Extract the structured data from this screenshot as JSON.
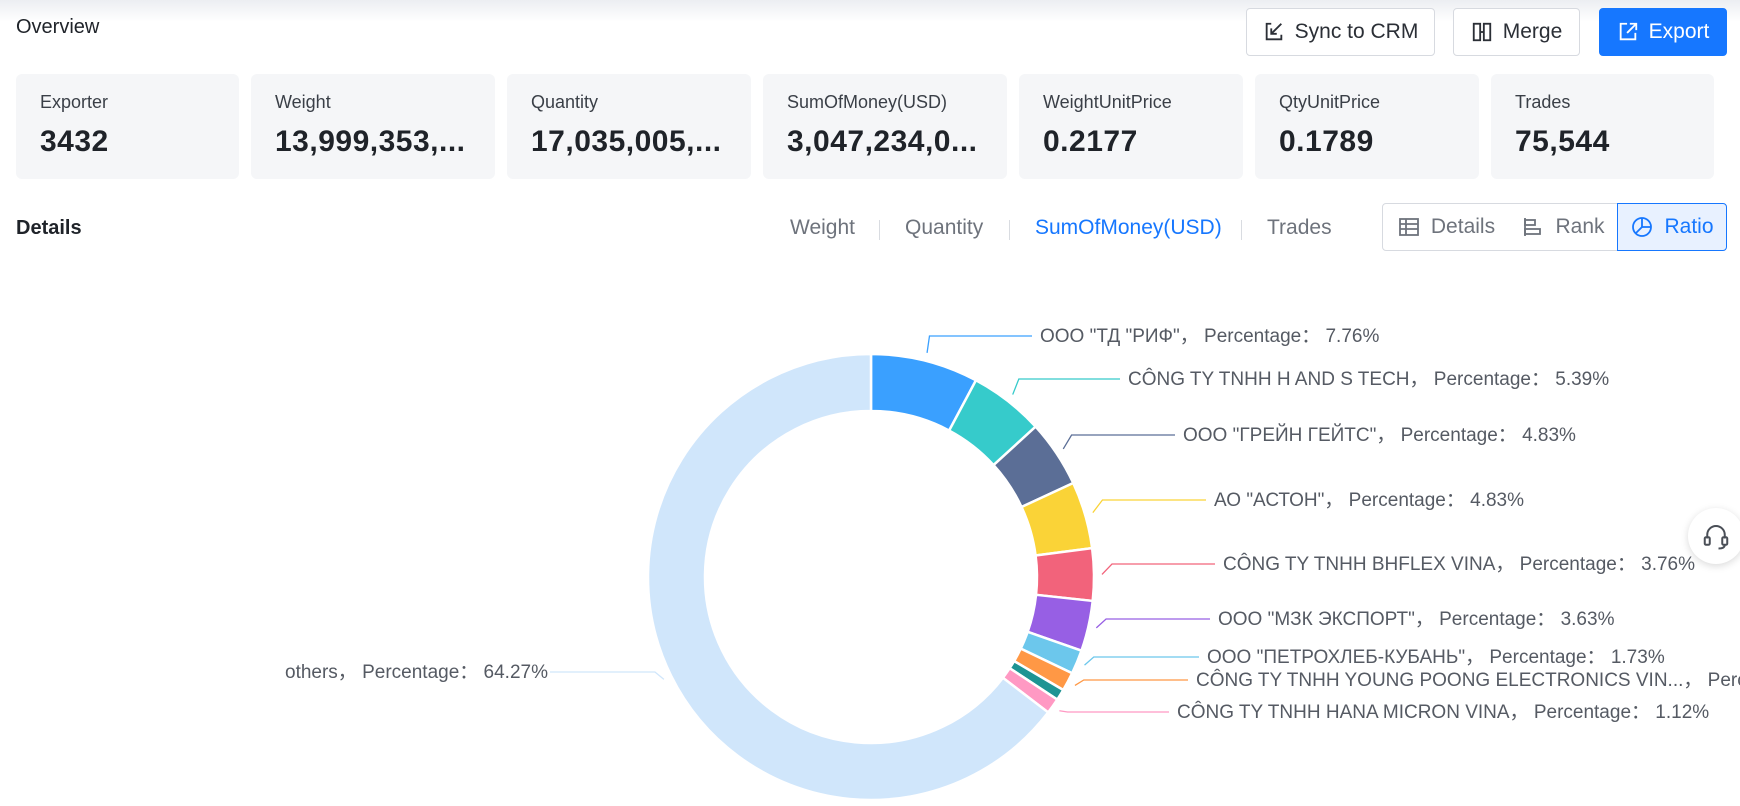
{
  "overview": {
    "title": "Overview"
  },
  "toolbar": {
    "sync_label": "Sync to CRM",
    "merge_label": "Merge",
    "export_label": "Export"
  },
  "stats": [
    {
      "label": "Exporter",
      "value": "3432"
    },
    {
      "label": "Weight",
      "value": "13,999,353,..."
    },
    {
      "label": "Quantity",
      "value": "17,035,005,..."
    },
    {
      "label": "SumOfMoney(USD)",
      "value": "3,047,234,0..."
    },
    {
      "label": "WeightUnitPrice",
      "value": "0.2177"
    },
    {
      "label": "QtyUnitPrice",
      "value": "0.1789"
    },
    {
      "label": "Trades",
      "value": "75,544"
    }
  ],
  "details": {
    "title": "Details",
    "metric_tabs": [
      "Weight",
      "Quantity",
      "SumOfMoney(USD)",
      "Trades"
    ],
    "active_metric": "SumOfMoney(USD)",
    "view_buttons": [
      "Details",
      "Rank",
      "Ratio"
    ],
    "active_view": "Ratio"
  },
  "colors": {
    "accent": "#1677ff"
  },
  "chart_data": {
    "type": "pie",
    "style": "donut",
    "value_label": "Percentage",
    "slices": [
      {
        "name": "ООО \"ТД \"РИФ\"",
        "value": 7.76,
        "label": "ООО \"ТД \"РИФ\"， Percentage： 7.76%",
        "color": "#3aa0ff"
      },
      {
        "name": "CÔNG TY TNHH H AND S TECH",
        "value": 5.39,
        "label": "CÔNG TY TNHH H AND S TECH， Percentage： 5.39%",
        "color": "#36cbcb"
      },
      {
        "name": "ООО \"ГРЕЙН ГЕЙТС\"",
        "value": 4.83,
        "label": "ООО \"ГРЕЙН ГЕЙТС\"， Percentage： 4.83%",
        "color": "#5b6e96"
      },
      {
        "name": "АО \"АСТОН\"",
        "value": 4.83,
        "label": "АО \"АСТОН\"， Percentage： 4.83%",
        "color": "#fad337"
      },
      {
        "name": "CÔNG TY TNHH BHFLEX VINA",
        "value": 3.76,
        "label": "CÔNG TY TNHH BHFLEX VINA， Percentage： 3.76%",
        "color": "#f2637b"
      },
      {
        "name": "ООО \"МЗК ЭКСПОРТ\"",
        "value": 3.63,
        "label": "ООО \"МЗК ЭКСПОРТ\"， Percentage： 3.63%",
        "color": "#975fe4"
      },
      {
        "name": "ООО \"ПЕТРОХЛЕБ-КУБАНЬ\"",
        "value": 1.73,
        "label": "ООО \"ПЕТРОХЛЕБ-КУБАНЬ\"， Percentage： 1.73%",
        "color": "#6cc7ec"
      },
      {
        "name": "CÔNG TY TNHH YOUNG POONG ELECTRONICS VIN...",
        "value": 1.35,
        "label": "CÔNG TY TNHH YOUNG POONG ELECTRONICS VIN...， Perce",
        "color": "#ff9845"
      },
      {
        "name": "",
        "value": 0.8,
        "label": "",
        "color": "#1e9493"
      },
      {
        "name": "CÔNG TY TNHH HANA MICRON VINA",
        "value": 1.12,
        "label": "CÔNG TY TNHH HANA MICRON VINA， Percentage： 1.12%",
        "color": "#ff99c3"
      },
      {
        "name": "others",
        "value": 64.27,
        "label": "others， Percentage： 64.27%",
        "color": "#d0e6fb"
      }
    ]
  }
}
